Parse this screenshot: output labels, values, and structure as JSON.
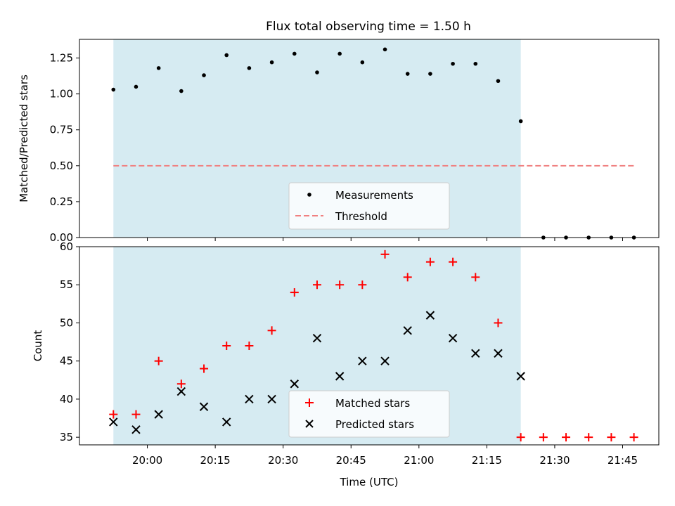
{
  "title": "Flux total observing time = 1.50 h",
  "colors": {
    "shade": "#add8e6",
    "measurement": "#000000",
    "threshold": "#f08080",
    "matched": "#ff0000",
    "predicted": "#000000"
  },
  "chart_data": [
    {
      "type": "scatter",
      "ylabel": "Matched/Predicted stars",
      "ylim": [
        0,
        1.38
      ],
      "yticks": [
        0,
        0.25,
        0.5,
        0.75,
        1.0,
        1.25
      ],
      "ytick_labels": [
        "0.00",
        "0.25",
        "0.50",
        "0.75",
        "1.00",
        "1.25"
      ],
      "shaded_span": [
        "19:52:30",
        "21:22:30"
      ],
      "threshold": 0.5,
      "legend": {
        "placement": "lower-center",
        "entries": [
          "Measurements",
          "Threshold"
        ]
      },
      "series": [
        {
          "name": "Measurements",
          "x": [
            "19:52:30",
            "19:57:30",
            "20:02:30",
            "20:07:30",
            "20:12:30",
            "20:17:30",
            "20:22:30",
            "20:27:30",
            "20:32:30",
            "20:37:30",
            "20:42:30",
            "20:47:30",
            "20:52:30",
            "20:57:30",
            "21:02:30",
            "21:07:30",
            "21:12:30",
            "21:17:30",
            "21:22:30",
            "21:27:30",
            "21:32:30",
            "21:37:30",
            "21:42:30",
            "21:47:30"
          ],
          "values": [
            1.03,
            1.05,
            1.18,
            1.02,
            1.13,
            1.27,
            1.18,
            1.22,
            1.28,
            1.15,
            1.28,
            1.22,
            1.31,
            1.14,
            1.14,
            1.21,
            1.21,
            1.09,
            0.81,
            0,
            0,
            0,
            0,
            0
          ]
        },
        {
          "name": "Threshold",
          "x": [
            "19:52:30",
            "21:47:30"
          ],
          "values": [
            0.5,
            0.5
          ]
        }
      ]
    },
    {
      "type": "scatter",
      "xlabel": "Time (UTC)",
      "ylabel": "Count",
      "ylim": [
        34,
        60
      ],
      "yticks": [
        35,
        40,
        45,
        50,
        55,
        60
      ],
      "ytick_labels": [
        "35",
        "40",
        "45",
        "50",
        "55",
        "60"
      ],
      "xticks": [
        "20:00",
        "20:15",
        "20:30",
        "20:45",
        "21:00",
        "21:15",
        "21:30",
        "21:45"
      ],
      "xlim": [
        "19:45:00",
        "21:53:00"
      ],
      "shaded_span": [
        "19:52:30",
        "21:22:30"
      ],
      "legend": {
        "placement": "lower-center",
        "entries": [
          "Matched stars",
          "Predicted stars"
        ]
      },
      "series": [
        {
          "name": "Matched stars",
          "x": [
            "19:52:30",
            "19:57:30",
            "20:02:30",
            "20:07:30",
            "20:12:30",
            "20:17:30",
            "20:22:30",
            "20:27:30",
            "20:32:30",
            "20:37:30",
            "20:42:30",
            "20:47:30",
            "20:52:30",
            "20:57:30",
            "21:02:30",
            "21:07:30",
            "21:12:30",
            "21:17:30",
            "21:22:30",
            "21:27:30",
            "21:32:30",
            "21:37:30",
            "21:42:30",
            "21:47:30"
          ],
          "values": [
            38,
            38,
            45,
            42,
            44,
            47,
            47,
            49,
            54,
            55,
            55,
            55,
            59,
            56,
            58,
            58,
            56,
            50,
            35,
            35,
            35,
            35,
            35,
            35
          ]
        },
        {
          "name": "Predicted stars",
          "x": [
            "19:52:30",
            "19:57:30",
            "20:02:30",
            "20:07:30",
            "20:12:30",
            "20:17:30",
            "20:22:30",
            "20:27:30",
            "20:32:30",
            "20:37:30",
            "20:42:30",
            "20:47:30",
            "20:52:30",
            "20:57:30",
            "21:02:30",
            "21:07:30",
            "21:12:30",
            "21:17:30",
            "21:22:30"
          ],
          "values": [
            37,
            36,
            38,
            41,
            39,
            37,
            40,
            40,
            42,
            48,
            43,
            45,
            45,
            49,
            51,
            48,
            46,
            46,
            43
          ]
        }
      ]
    }
  ]
}
